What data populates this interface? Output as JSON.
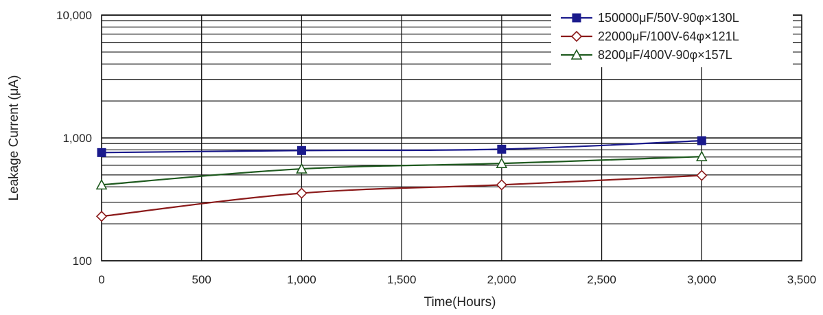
{
  "chart_data": {
    "type": "line",
    "title": "",
    "xlabel": "Time(Hours)",
    "ylabel": "Leakage Current (μA)",
    "xlim": [
      0,
      3500
    ],
    "ylim": [
      100,
      10000
    ],
    "y_scale": "log",
    "x_ticks": [
      0,
      500,
      1000,
      1500,
      2000,
      2500,
      3000,
      3500
    ],
    "x_tick_labels": [
      "0",
      "500",
      "1,000",
      "1,500",
      "2,000",
      "2,500",
      "3,000",
      "3,500"
    ],
    "y_ticks": [
      100,
      1000,
      10000
    ],
    "y_tick_labels": [
      "100",
      "1,000",
      "10,000"
    ],
    "grid": true,
    "legend_position": "top-right",
    "series": [
      {
        "name": "150000μF/50V-90φ×130L",
        "color": "#1a1a8c",
        "marker": "filled-square",
        "x": [
          0,
          1000,
          2000,
          3000
        ],
        "y": [
          760,
          790,
          810,
          950
        ]
      },
      {
        "name": "22000μF/100V-64φ×121L",
        "color": "#8b1a1a",
        "marker": "open-diamond",
        "x": [
          0,
          1000,
          2000,
          3000
        ],
        "y": [
          230,
          355,
          415,
          495
        ]
      },
      {
        "name": "8200μF/400V-90φ×157L",
        "color": "#1f5a1f",
        "marker": "open-triangle",
        "x": [
          0,
          1000,
          2000,
          3000
        ],
        "y": [
          415,
          560,
          620,
          705
        ]
      }
    ]
  }
}
